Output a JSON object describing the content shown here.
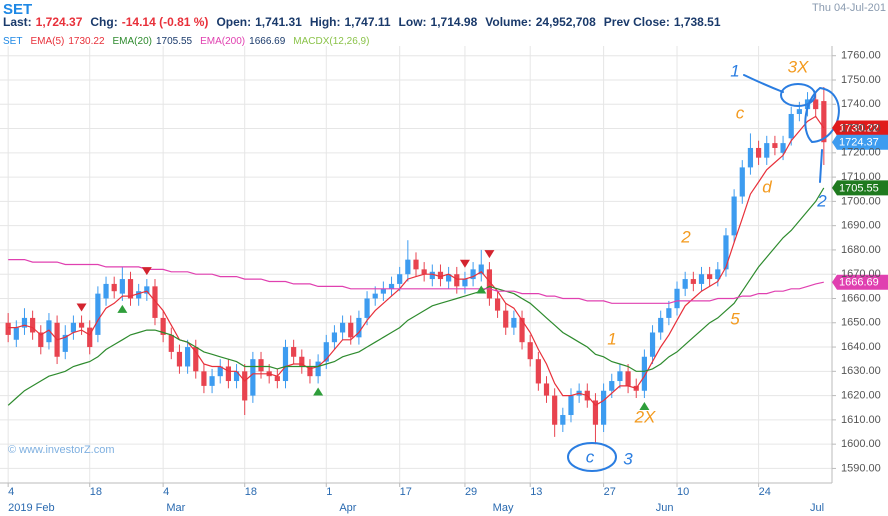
{
  "header": {
    "symbol": "SET",
    "date": "Thu 04-Jul-201",
    "fields": [
      {
        "label": "Last:",
        "value": "1,724.37"
      },
      {
        "label": "Chg:",
        "value": "-14.14 (-0.81 %)"
      },
      {
        "label": "Open:",
        "value": "1,741.31"
      },
      {
        "label": "High:",
        "value": "1,747.11"
      },
      {
        "label": "Low:",
        "value": "1,714.98"
      },
      {
        "label": "Volume:",
        "value": "24,952,708"
      },
      {
        "label": "Prev Close:",
        "value": "1,738.51"
      }
    ],
    "watermark": "© www.investorZ.com"
  },
  "annotations": [
    {
      "text": "1",
      "color": "#2a7de1"
    },
    {
      "text": "3X",
      "color": "#f39a1e"
    },
    {
      "text": "c",
      "color": "#f39a1e"
    },
    {
      "text": "d",
      "color": "#f39a1e"
    },
    {
      "text": "2",
      "color": "#2a7de1"
    },
    {
      "text": "2",
      "color": "#f39a1e"
    },
    {
      "text": "5",
      "color": "#f39a1e"
    },
    {
      "text": "1",
      "color": "#f39a1e"
    },
    {
      "text": "2X",
      "color": "#f39a1e"
    },
    {
      "text": "c",
      "color": "#2a7de1"
    },
    {
      "text": "3",
      "color": "#2a7de1"
    }
  ],
  "chart_data": {
    "type": "candlestick",
    "title": "SET",
    "title_color": "#1e88e5",
    "up_color": "#3d9cf0",
    "down_color": "#e8434f",
    "open": [
      1650,
      1643,
      1648,
      1652,
      1646,
      1642,
      1650,
      1638,
      1646,
      1650,
      1648,
      1645,
      1660,
      1666,
      1662,
      1668,
      1660,
      1662,
      1665,
      1652,
      1645,
      1638,
      1632,
      1640,
      1630,
      1624,
      1628,
      1632,
      1626,
      1630,
      1620,
      1635,
      1630,
      1628,
      1626,
      1640,
      1636,
      1632,
      1628,
      1634,
      1642,
      1646,
      1650,
      1644,
      1652,
      1660,
      1662,
      1664,
      1666,
      1670,
      1676,
      1672,
      1668,
      1671,
      1667,
      1670,
      1665,
      1668,
      1670,
      1672,
      1660,
      1655,
      1648,
      1652,
      1642,
      1635,
      1625,
      1620,
      1608,
      1612,
      1620,
      1622,
      1618,
      1608,
      1622,
      1626,
      1630,
      1624,
      1622,
      1636,
      1646,
      1652,
      1656,
      1664,
      1668,
      1666,
      1670,
      1668,
      1672,
      1686,
      1702,
      1714,
      1722,
      1718,
      1724,
      1720,
      1726,
      1736,
      1738,
      1742,
      1741.31
    ],
    "high": [
      1654,
      1651,
      1656,
      1655,
      1649,
      1654,
      1653,
      1649,
      1653,
      1653,
      1651,
      1665,
      1669,
      1669,
      1673,
      1671,
      1666,
      1668,
      1668,
      1655,
      1648,
      1641,
      1643,
      1643,
      1633,
      1631,
      1635,
      1635,
      1633,
      1633,
      1638,
      1638,
      1633,
      1631,
      1643,
      1643,
      1639,
      1635,
      1637,
      1645,
      1649,
      1653,
      1653,
      1655,
      1663,
      1665,
      1667,
      1669,
      1673,
      1684,
      1679,
      1675,
      1674,
      1674,
      1673,
      1673,
      1671,
      1675,
      1680,
      1675,
      1663,
      1658,
      1655,
      1655,
      1645,
      1638,
      1628,
      1623,
      1615,
      1623,
      1625,
      1625,
      1621,
      1625,
      1629,
      1633,
      1633,
      1627,
      1639,
      1649,
      1655,
      1659,
      1667,
      1671,
      1671,
      1673,
      1673,
      1675,
      1689,
      1705,
      1717,
      1728,
      1725,
      1727,
      1727,
      1727,
      1739,
      1741,
      1745,
      1745,
      1747.11
    ],
    "low": [
      1642,
      1640,
      1645,
      1643,
      1637,
      1639,
      1633,
      1635,
      1643,
      1645,
      1637,
      1642,
      1657,
      1660,
      1659,
      1657,
      1657,
      1659,
      1649,
      1642,
      1635,
      1629,
      1629,
      1627,
      1621,
      1621,
      1625,
      1623,
      1623,
      1612,
      1617,
      1627,
      1625,
      1623,
      1623,
      1633,
      1629,
      1625,
      1625,
      1631,
      1639,
      1643,
      1641,
      1641,
      1649,
      1657,
      1659,
      1661,
      1663,
      1667,
      1669,
      1667,
      1665,
      1665,
      1664,
      1662,
      1662,
      1665,
      1667,
      1657,
      1652,
      1645,
      1645,
      1639,
      1632,
      1622,
      1617,
      1603,
      1605,
      1609,
      1617,
      1615,
      1600,
      1605,
      1619,
      1623,
      1621,
      1619,
      1619,
      1633,
      1643,
      1649,
      1653,
      1661,
      1663,
      1663,
      1665,
      1665,
      1669,
      1683,
      1699,
      1711,
      1715,
      1715,
      1719,
      1717,
      1723,
      1733,
      1735,
      1735,
      1714.98
    ],
    "close": [
      1645,
      1648,
      1652,
      1646,
      1640,
      1651,
      1636,
      1645,
      1650,
      1648,
      1640,
      1662,
      1666,
      1663,
      1668,
      1660,
      1663,
      1665,
      1652,
      1645,
      1638,
      1632,
      1640,
      1630,
      1624,
      1628,
      1632,
      1626,
      1630,
      1618,
      1635,
      1630,
      1628,
      1626,
      1640,
      1636,
      1632,
      1628,
      1634,
      1642,
      1646,
      1650,
      1644,
      1652,
      1660,
      1662,
      1664,
      1666,
      1670,
      1676,
      1672,
      1670,
      1671,
      1668,
      1670,
      1665,
      1668,
      1672,
      1674,
      1660,
      1655,
      1648,
      1652,
      1642,
      1635,
      1625,
      1620,
      1608,
      1612,
      1620,
      1622,
      1618,
      1608,
      1622,
      1626,
      1630,
      1624,
      1622,
      1636,
      1646,
      1652,
      1656,
      1664,
      1668,
      1666,
      1670,
      1668,
      1672,
      1686,
      1702,
      1714,
      1722,
      1718,
      1724,
      1722,
      1724,
      1736,
      1738,
      1742,
      1738,
      1724.37
    ],
    "series": [
      {
        "name": "EMA(5)",
        "color": "#e8303a",
        "values": [
          1648,
          1648,
          1649,
          1648,
          1645,
          1647,
          1643,
          1644,
          1646,
          1647,
          1645,
          1651,
          1656,
          1658,
          1661,
          1661,
          1662,
          1663,
          1659,
          1655,
          1649,
          1643,
          1642,
          1638,
          1633,
          1632,
          1632,
          1630,
          1630,
          1626,
          1629,
          1629,
          1629,
          1628,
          1632,
          1633,
          1633,
          1631,
          1632,
          1635,
          1639,
          1643,
          1643,
          1646,
          1651,
          1655,
          1658,
          1661,
          1664,
          1668,
          1669,
          1670,
          1670,
          1669,
          1670,
          1668,
          1668,
          1669,
          1671,
          1667,
          1663,
          1658,
          1656,
          1651,
          1646,
          1639,
          1633,
          1625,
          1620,
          1620,
          1621,
          1620,
          1616,
          1618,
          1621,
          1624,
          1624,
          1623,
          1628,
          1634,
          1640,
          1645,
          1651,
          1657,
          1660,
          1663,
          1665,
          1667,
          1673,
          1683,
          1693,
          1703,
          1708,
          1713,
          1716,
          1719,
          1725,
          1729,
          1733,
          1735,
          1730.22
        ]
      },
      {
        "name": "EMA(20)",
        "color": "#2e8b2e",
        "values": [
          1616,
          1619,
          1622,
          1624,
          1626,
          1628,
          1629,
          1630,
          1632,
          1633,
          1634,
          1636,
          1639,
          1641,
          1643,
          1645,
          1646,
          1647,
          1647,
          1646,
          1645,
          1643,
          1642,
          1640,
          1638,
          1637,
          1636,
          1635,
          1634,
          1632,
          1632,
          1632,
          1632,
          1631,
          1632,
          1632,
          1632,
          1632,
          1632,
          1633,
          1634,
          1636,
          1637,
          1638,
          1640,
          1642,
          1644,
          1646,
          1648,
          1651,
          1653,
          1655,
          1657,
          1658,
          1659,
          1660,
          1661,
          1662,
          1663,
          1665,
          1664,
          1663,
          1662,
          1660,
          1658,
          1655,
          1652,
          1649,
          1646,
          1644,
          1642,
          1640,
          1637,
          1636,
          1634,
          1633,
          1632,
          1630,
          1630,
          1631,
          1633,
          1636,
          1638,
          1641,
          1644,
          1647,
          1650,
          1652,
          1655,
          1658,
          1663,
          1668,
          1673,
          1677,
          1681,
          1685,
          1688,
          1692,
          1696,
          1700,
          1705.55
        ]
      },
      {
        "name": "EMA(200)",
        "color": "#e040b0",
        "values": [
          1676,
          1676,
          1676,
          1675,
          1675,
          1675,
          1675,
          1674,
          1674,
          1674,
          1674,
          1674,
          1673,
          1673,
          1673,
          1673,
          1673,
          1672,
          1672,
          1672,
          1671,
          1671,
          1671,
          1670,
          1670,
          1670,
          1669,
          1669,
          1669,
          1668,
          1668,
          1668,
          1667,
          1667,
          1667,
          1666,
          1666,
          1666,
          1665,
          1665,
          1665,
          1665,
          1664,
          1664,
          1664,
          1664,
          1664,
          1664,
          1664,
          1664,
          1664,
          1664,
          1664,
          1664,
          1664,
          1664,
          1664,
          1664,
          1664,
          1664,
          1663,
          1663,
          1663,
          1662,
          1662,
          1662,
          1661,
          1661,
          1660,
          1660,
          1660,
          1659,
          1659,
          1659,
          1658,
          1658,
          1658,
          1658,
          1658,
          1658,
          1658,
          1658,
          1659,
          1659,
          1659,
          1659,
          1659,
          1660,
          1660,
          1660,
          1661,
          1661,
          1662,
          1662,
          1663,
          1663,
          1664,
          1664,
          1665,
          1666,
          1666.69
        ]
      }
    ],
    "indicator_label": "MACDX(12,26,9)",
    "indicator_color": "#8bc34a",
    "buy_signals": [
      14,
      38,
      58,
      78
    ],
    "sell_signals": [
      9,
      17,
      56,
      59
    ],
    "xlim": [
      -1,
      101
    ],
    "xticks": [
      {
        "value": 0,
        "label": "4"
      },
      {
        "value": 10,
        "label": "18"
      },
      {
        "value": 19,
        "label": "4"
      },
      {
        "value": 29,
        "label": "18"
      },
      {
        "value": 39,
        "label": "1"
      },
      {
        "value": 48,
        "label": "17"
      },
      {
        "value": 56,
        "label": "29"
      },
      {
        "value": 64,
        "label": "13"
      },
      {
        "value": 73,
        "label": "27"
      },
      {
        "value": 82,
        "label": "10"
      },
      {
        "value": 92,
        "label": "24"
      }
    ],
    "month_ticks": [
      {
        "value": 0,
        "label": "2019 Feb"
      },
      {
        "value": 19.4,
        "label": "Mar"
      },
      {
        "value": 40.6,
        "label": "Apr"
      },
      {
        "value": 59.4,
        "label": "May"
      },
      {
        "value": 79.4,
        "label": "Jun"
      },
      {
        "value": 98.3,
        "label": "Jul"
      }
    ],
    "ylim": [
      1584,
      1764
    ],
    "yticks": [
      {
        "value": 1590,
        "label": "1590.00"
      },
      {
        "value": 1600,
        "label": "1600.00"
      },
      {
        "value": 1610,
        "label": "1610.00"
      },
      {
        "value": 1620,
        "label": "1620.00"
      },
      {
        "value": 1630,
        "label": "1630.00"
      },
      {
        "value": 1640,
        "label": "1640.00"
      },
      {
        "value": 1650,
        "label": "1650.00"
      },
      {
        "value": 1660,
        "label": "1660.00"
      },
      {
        "value": 1670,
        "label": "1670.00"
      },
      {
        "value": 1680,
        "label": "1680.00"
      },
      {
        "value": 1690,
        "label": "1690.00"
      },
      {
        "value": 1700,
        "label": "1700.00"
      },
      {
        "value": 1710,
        "label": "1710.00"
      },
      {
        "value": 1720,
        "label": "1720.00"
      },
      {
        "value": 1730,
        "label": "1730.00"
      },
      {
        "value": 1740,
        "label": "1740.00"
      },
      {
        "value": 1750,
        "label": "1750.00"
      },
      {
        "value": 1760,
        "label": "1760.00"
      }
    ],
    "grid": true
  }
}
